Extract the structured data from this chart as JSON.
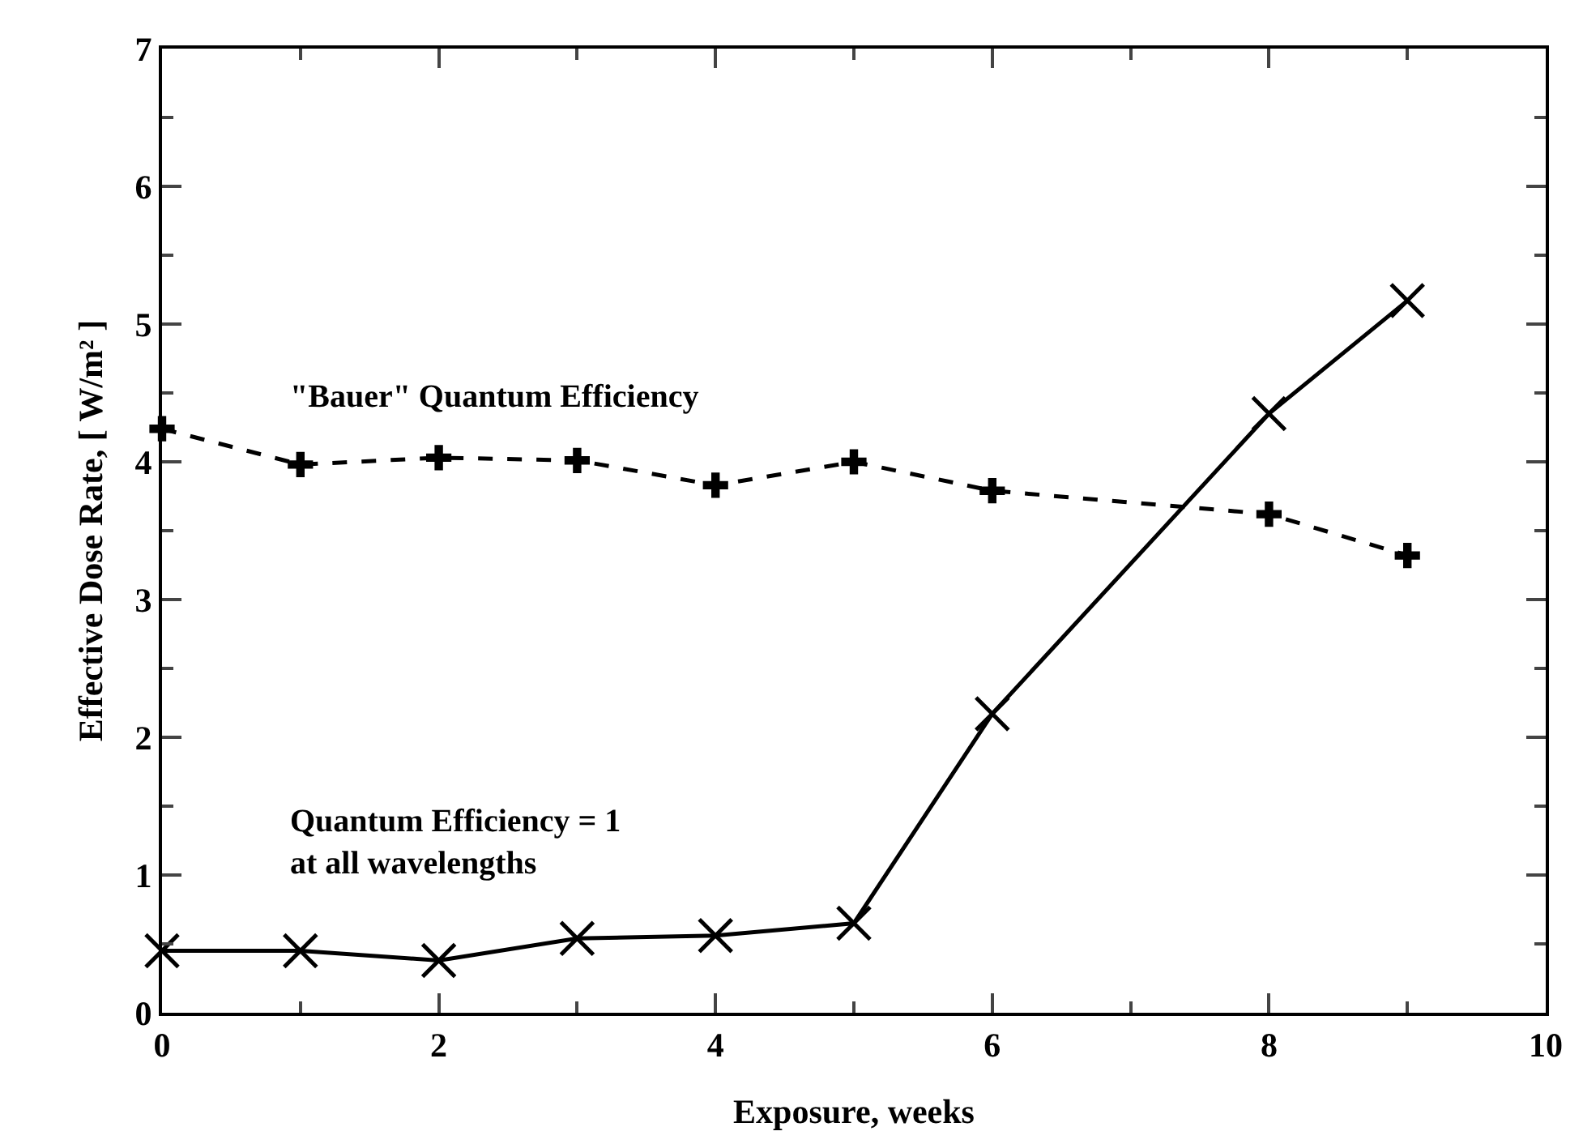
{
  "chart_data": {
    "type": "line",
    "xlabel": "Exposure, weeks",
    "ylabel": "Effective Dose Rate, [ W/m² ]",
    "xlim": [
      0,
      10
    ],
    "ylim": [
      0,
      7
    ],
    "xticks": [
      0,
      {
        "value": 1,
        "label": null
      },
      2,
      {
        "value": 3,
        "label": null
      },
      4,
      {
        "value": 5,
        "label": null
      },
      6,
      {
        "value": 7,
        "label": null
      },
      8,
      {
        "value": 9,
        "label": null
      },
      10
    ],
    "yticks": [
      0,
      {
        "value": 0.5,
        "label": null
      },
      1,
      {
        "value": 1.5,
        "label": null
      },
      2,
      {
        "value": 2.5,
        "label": null
      },
      3,
      {
        "value": 3.5,
        "label": null
      },
      4,
      {
        "value": 4.5,
        "label": null
      },
      5,
      {
        "value": 5.5,
        "label": null
      },
      6,
      {
        "value": 6.5,
        "label": null
      },
      7
    ],
    "grid": false,
    "legend": false,
    "series": [
      {
        "name": "\"Bauer\" Quantum Efficiency",
        "color": "#000000",
        "marker": "cross",
        "line_style": "dashed",
        "x": [
          0,
          1,
          2,
          3,
          4,
          5,
          6,
          8,
          9
        ],
        "values": [
          4.24,
          3.98,
          4.03,
          4.01,
          3.83,
          4.0,
          3.79,
          3.62,
          3.32
        ]
      },
      {
        "name": "Quantum Efficiency = 1\nat all wavelengths",
        "color": "#000000",
        "marker": "x",
        "line_style": "solid",
        "x": [
          0,
          1,
          2,
          3,
          4,
          5,
          6,
          8,
          9
        ],
        "values": [
          0.45,
          0.45,
          0.38,
          0.54,
          0.56,
          0.65,
          2.17,
          4.35,
          5.17
        ]
      }
    ]
  }
}
